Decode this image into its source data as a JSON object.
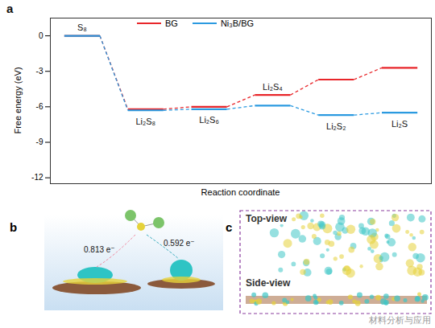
{
  "chart_data": {
    "type": "line",
    "x_label": "Reaction coordinate",
    "y_label": "Free energy (eV)",
    "categories": [
      "S₈",
      "Li₂S₈",
      "Li₂S₆",
      "Li₂S₄",
      "Li₂S₂",
      "Li₂S"
    ],
    "series": [
      {
        "name": "BG",
        "color": "#e8262a",
        "values": [
          0,
          -6.2,
          -6.0,
          -5.0,
          -3.7,
          -2.7
        ]
      },
      {
        "name": "Ni₃B/BG",
        "color": "#2b9ae0",
        "values": [
          0,
          -6.3,
          -6.2,
          -5.9,
          -6.7,
          -6.5
        ]
      }
    ],
    "ylim": [
      -12.5,
      1.5
    ],
    "yticks": [
      0,
      -3,
      -6,
      -9,
      -12
    ],
    "tick_labels": "y",
    "line_style": "dashed",
    "legend": "top"
  },
  "panels": [
    {
      "label": "a"
    },
    {
      "label": "b",
      "annotations": [
        "0.813 e⁻",
        "0.592 e⁻"
      ]
    },
    {
      "label": "c",
      "views": [
        "Top-view",
        "Side-view"
      ]
    }
  ],
  "watermark": "材料分析与应用"
}
